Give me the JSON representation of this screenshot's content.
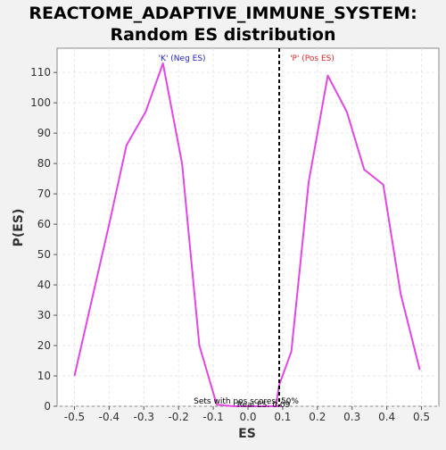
{
  "chart_data": {
    "type": "line",
    "title_line1": "REACTOME_ADAPTIVE_IMMUNE_SYSTEM:",
    "title_line2": "Random ES distribution",
    "xlabel": "ES",
    "ylabel": "P(ES)",
    "xlim": [
      -0.55,
      0.55
    ],
    "ylim": [
      0,
      118
    ],
    "x_ticks": [
      -0.5,
      -0.4,
      -0.3,
      -0.2,
      -0.1,
      0.0,
      0.1,
      0.2,
      0.3,
      0.4,
      0.5
    ],
    "x_tick_labels": [
      "-0.5",
      "-0.4",
      "-0.3",
      "-0.2",
      "-0.1",
      "0.0",
      "0.1",
      "0.2",
      "0.3",
      "0.4",
      "0.5"
    ],
    "y_ticks": [
      0,
      10,
      20,
      30,
      40,
      50,
      60,
      70,
      80,
      90,
      100,
      110
    ],
    "y_tick_labels": [
      "0",
      "10",
      "20",
      "30",
      "40",
      "50",
      "60",
      "70",
      "80",
      "90",
      "100",
      "110"
    ],
    "grid": true,
    "series": [
      {
        "color": "#e645e6",
        "x": [
          -0.5,
          -0.45,
          -0.4,
          -0.35,
          -0.295,
          -0.245,
          -0.19,
          -0.14,
          -0.09,
          -0.04,
          0.01,
          0.06,
          0.08,
          0.085,
          0.09,
          0.095
        ],
        "y": [
          10,
          35,
          60,
          86,
          97,
          113,
          80,
          20,
          0.5,
          0,
          0,
          0,
          0,
          0,
          0,
          0
        ]
      },
      {
        "color": "#e645e6",
        "x": [
          0.08,
          0.09,
          0.125,
          0.175,
          0.23,
          0.285,
          0.335,
          0.39,
          0.44,
          0.495
        ],
        "y": [
          0,
          7,
          18,
          74,
          109,
          97,
          78,
          73,
          37,
          12
        ]
      }
    ],
    "vline_x": 0.09,
    "annotation_neg": "'K' (Neg ES)",
    "annotation_pos": "'P' (Pos ES)",
    "annotation_neg_color": "#2323c8",
    "annotation_pos_color": "#e62323",
    "footnote_line1": "Sets with pos scores: 50%",
    "footnote_line2": "Real ES: 0.09"
  }
}
